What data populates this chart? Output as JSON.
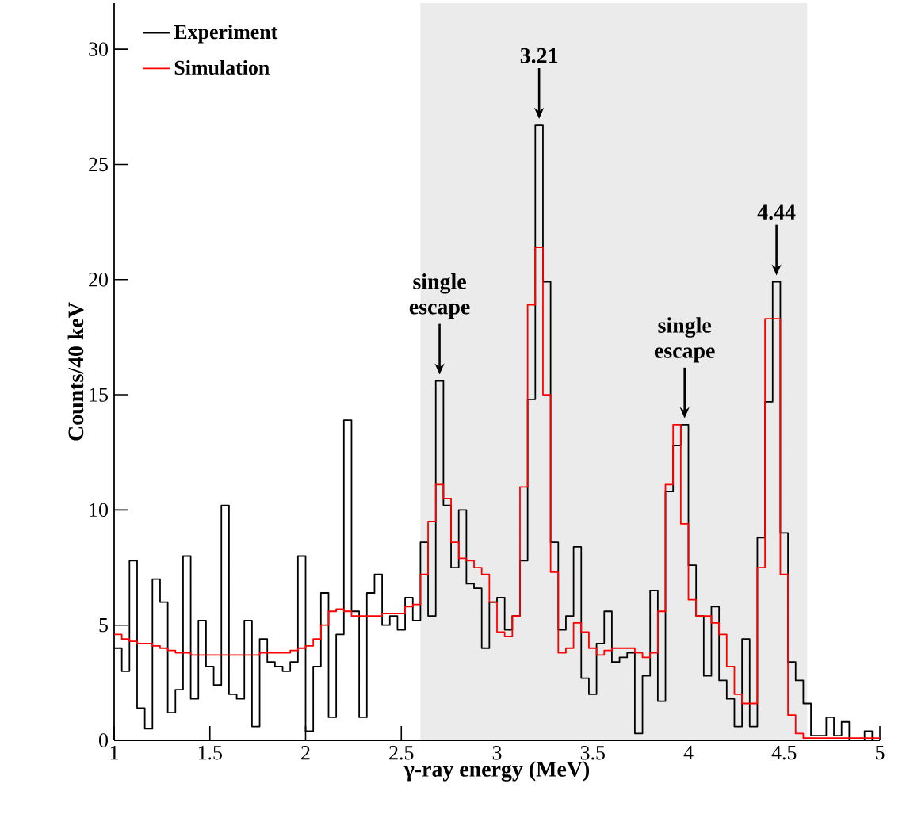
{
  "chart_data": {
    "type": "histogram",
    "xlabel": "γ-ray energy (MeV)",
    "ylabel": "Counts/40 keV",
    "bins": [
      1,
      1.04,
      1.08,
      1.12,
      1.16,
      1.2,
      1.24,
      1.28,
      1.32,
      1.36,
      1.4,
      1.44,
      1.48,
      1.52,
      1.56,
      1.6,
      1.64,
      1.68,
      1.72,
      1.76,
      1.8,
      1.84,
      1.88,
      1.92,
      1.96,
      2,
      2.04,
      2.08,
      2.12,
      2.16,
      2.2,
      2.24,
      2.28,
      2.32,
      2.36,
      2.4,
      2.44,
      2.48,
      2.52,
      2.56,
      2.6,
      2.64,
      2.68,
      2.72,
      2.76,
      2.8,
      2.84,
      2.88,
      2.92,
      2.96,
      3,
      3.04,
      3.08,
      3.12,
      3.16,
      3.2,
      3.24,
      3.28,
      3.32,
      3.36,
      3.4,
      3.44,
      3.48,
      3.52,
      3.56,
      3.6,
      3.64,
      3.68,
      3.72,
      3.76,
      3.8,
      3.84,
      3.88,
      3.92,
      3.96,
      4,
      4.04,
      4.08,
      4.12,
      4.16,
      4.2,
      4.24,
      4.28,
      4.32,
      4.36,
      4.4,
      4.44,
      4.48,
      4.52,
      4.56,
      4.6,
      4.64,
      4.68,
      4.72,
      4.76,
      4.8,
      4.84,
      4.88,
      4.92,
      4.96,
      5
    ],
    "series": [
      {
        "name": "Experiment",
        "color": "#000000",
        "values": [
          4.0,
          3.0,
          7.8,
          1.4,
          0.5,
          7.0,
          6.0,
          1.2,
          2.2,
          8.0,
          1.8,
          5.2,
          3.2,
          2.4,
          10.2,
          2.0,
          1.8,
          5.2,
          0.6,
          4.4,
          3.4,
          3.2,
          3.0,
          3.4,
          8.0,
          0.4,
          3.2,
          6.4,
          1.0,
          4.6,
          13.9,
          5.6,
          1.0,
          6.4,
          7.2,
          5.0,
          5.4,
          4.8,
          6.2,
          5.2,
          8.6,
          5.4,
          15.6,
          10.2,
          7.5,
          10.0,
          6.8,
          6.6,
          4.0,
          6.0,
          6.2,
          4.8,
          5.4,
          7.8,
          14.8,
          26.7,
          19.9,
          8.6,
          4.8,
          5.4,
          8.4,
          2.7,
          2.0,
          4.2,
          5.6,
          3.4,
          3.6,
          3.8,
          0.3,
          2.8,
          6.5,
          1.7,
          10.8,
          12.8,
          13.7,
          7.6,
          5.4,
          2.8,
          5.8,
          2.6,
          1.8,
          0.6,
          4.4,
          0.6,
          8.8,
          14.7,
          19.9,
          9.0,
          3.4,
          2.6,
          1.6,
          0.2,
          0.2,
          1.0,
          0.2,
          0.8,
          0,
          0,
          0.4,
          0
        ]
      },
      {
        "name": "Simulation",
        "color": "#ff0000",
        "values": [
          4.6,
          4.4,
          4.3,
          4.2,
          4.2,
          4.1,
          4.0,
          3.9,
          3.8,
          3.8,
          3.7,
          3.7,
          3.7,
          3.7,
          3.7,
          3.7,
          3.7,
          3.7,
          3.7,
          3.8,
          3.8,
          3.8,
          3.8,
          3.9,
          4.0,
          4.1,
          4.4,
          5.0,
          5.6,
          5.7,
          5.6,
          5.4,
          5.4,
          5.4,
          5.4,
          5.5,
          5.5,
          5.5,
          5.8,
          5.9,
          7.2,
          9.5,
          11.1,
          10.5,
          8.6,
          7.9,
          7.8,
          7.5,
          7.2,
          6.0,
          4.7,
          4.5,
          5.4,
          11.0,
          18.9,
          21.4,
          15.0,
          7.3,
          3.8,
          4.0,
          5.1,
          4.7,
          4.0,
          3.7,
          3.9,
          4.0,
          4.0,
          4.0,
          3.8,
          3.6,
          3.8,
          5.6,
          11.1,
          13.7,
          9.4,
          6.1,
          5.4,
          5.4,
          5.1,
          4.6,
          3.2,
          2.0,
          1.6,
          1.6,
          7.5,
          18.3,
          18.3,
          7.2,
          1.1,
          0.3,
          0.1,
          0.1,
          0.1,
          0.1,
          0.1,
          0.1,
          0.1,
          0.1,
          0.1,
          0.1
        ]
      }
    ],
    "xlim": [
      1,
      5
    ],
    "ylim": [
      0,
      32
    ],
    "xticks": [
      1,
      1.5,
      2,
      2.5,
      3,
      3.5,
      4,
      4.5,
      5
    ],
    "yticks": [
      0,
      5,
      10,
      15,
      20,
      25,
      30
    ],
    "bands": [
      {
        "axis": "x",
        "from": 2.6,
        "to": 4.62,
        "color": "#ebebeb"
      }
    ],
    "annotations": [
      {
        "text": "single escape",
        "x": 2.7,
        "y": 15.6
      },
      {
        "text": "3.21",
        "x": 3.22,
        "y": 26.7
      },
      {
        "text": "single escape",
        "x": 3.98,
        "y": 13.7
      },
      {
        "text": "4.44",
        "x": 4.46,
        "y": 19.9
      }
    ],
    "legend": "top left",
    "grid": false
  }
}
